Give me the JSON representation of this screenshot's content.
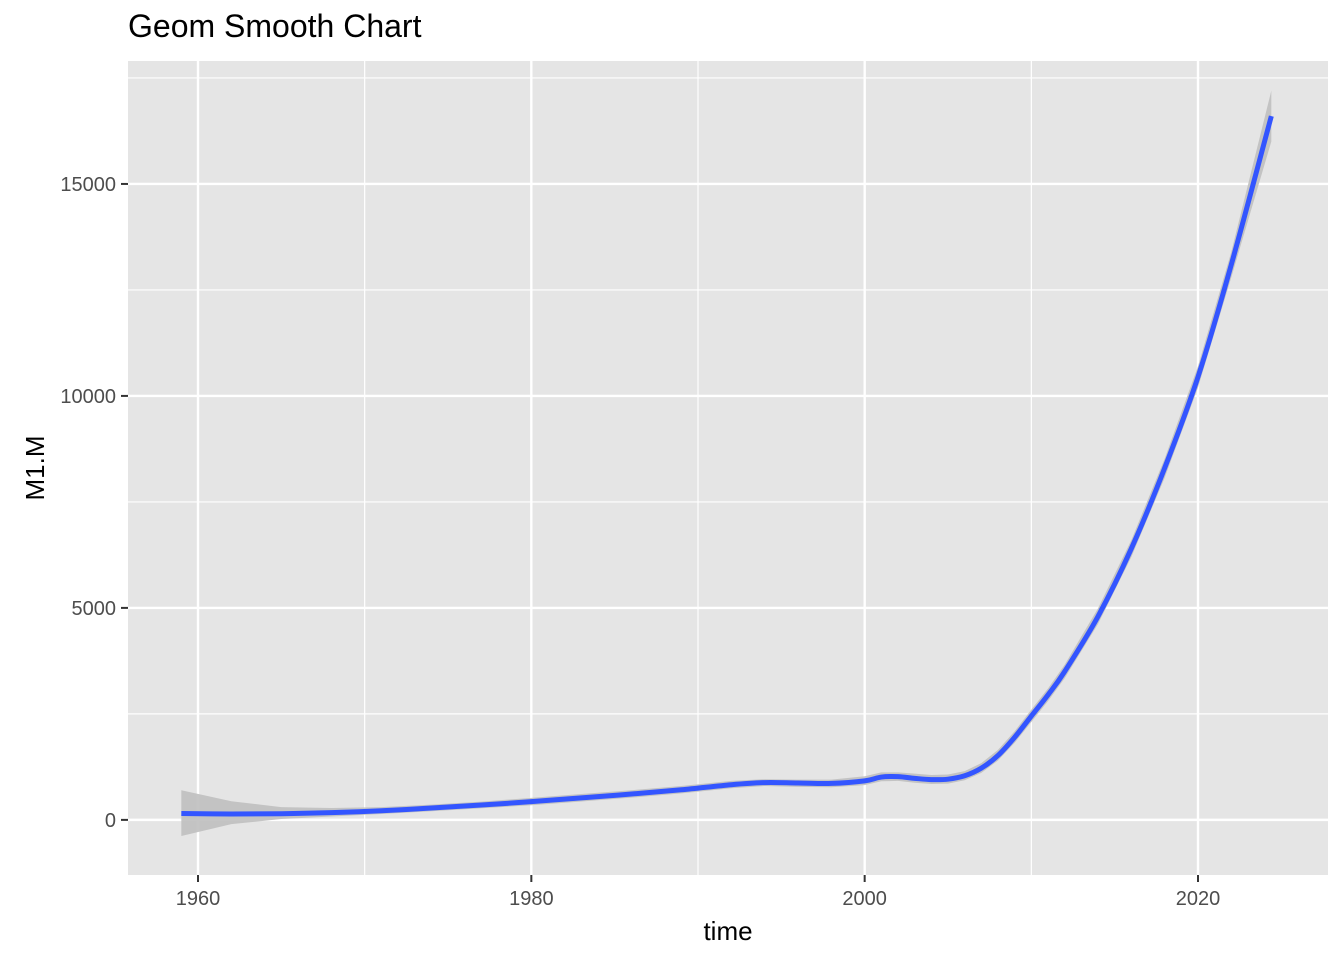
{
  "colors": {
    "panel": "#e5e5e5",
    "grid": "#ffffff",
    "line": "#3355ff",
    "ribbon": "#bfbfbf",
    "tick_text": "#4d4d4d",
    "axis_title": "#000000"
  },
  "chart_data": {
    "type": "line",
    "title": "Geom Smooth Chart",
    "xlabel": "time",
    "ylabel": "M1.M",
    "xlim": [
      1955.8,
      2027.8
    ],
    "ylim": [
      -1300,
      17900
    ],
    "x_ticks": [
      1960,
      1980,
      2000,
      2020
    ],
    "x_tick_labels": [
      "1960",
      "1980",
      "2000",
      "2020"
    ],
    "x_minor_ticks": [
      1970,
      1990,
      2010
    ],
    "y_ticks": [
      0,
      5000,
      10000,
      15000
    ],
    "y_tick_labels": [
      "0",
      "5000",
      "10000",
      "15000"
    ],
    "y_minor_ticks": [
      2500,
      7500,
      12500,
      17500
    ],
    "grid": true,
    "legend": "none",
    "series": [
      {
        "smoothing": "loess",
        "x": [
          1959,
          1962,
          1965,
          1968,
          1971,
          1974,
          1977,
          1980,
          1983,
          1986,
          1989,
          1992,
          1994,
          1996,
          1998,
          2000,
          2001,
          2002,
          2003,
          2004,
          2005,
          2006,
          2007,
          2008,
          2009,
          2010,
          2011,
          2012,
          2014,
          2016,
          2018,
          2020,
          2022,
          2024.4
        ],
        "y": [
          150,
          140,
          145,
          170,
          215,
          280,
          350,
          430,
          520,
          610,
          710,
          830,
          880,
          870,
          860,
          920,
          1010,
          1020,
          980,
          950,
          960,
          1040,
          1220,
          1520,
          1950,
          2450,
          2950,
          3500,
          4800,
          6400,
          8300,
          10450,
          13100,
          16600
        ],
        "lower": [
          -380,
          -100,
          20,
          80,
          140,
          205,
          275,
          345,
          435,
          525,
          625,
          745,
          800,
          780,
          770,
          820,
          910,
          920,
          875,
          845,
          855,
          935,
          1110,
          1400,
          1820,
          2310,
          2800,
          3340,
          4620,
          6200,
          8070,
          10200,
          12800,
          16000
        ],
        "upper": [
          700,
          440,
          300,
          280,
          300,
          360,
          430,
          520,
          610,
          700,
          800,
          920,
          960,
          950,
          950,
          1030,
          1120,
          1120,
          1090,
          1060,
          1070,
          1150,
          1340,
          1650,
          2090,
          2600,
          3100,
          3660,
          4990,
          6600,
          8520,
          10700,
          13400,
          17200
        ]
      }
    ]
  }
}
